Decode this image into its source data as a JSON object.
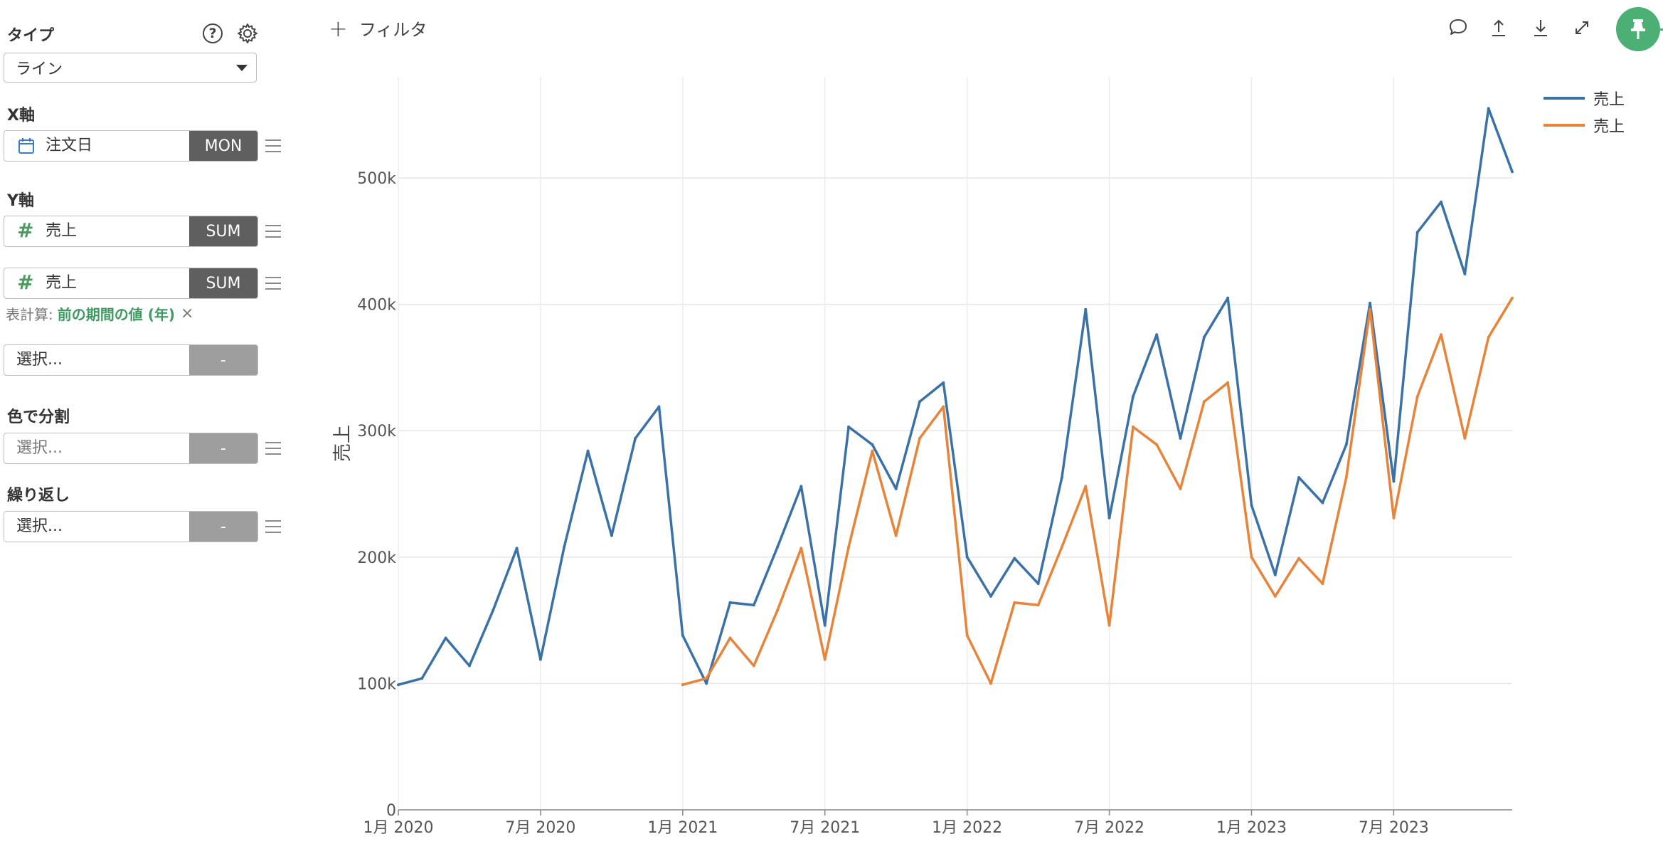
{
  "sidebar": {
    "type_label": "タイプ",
    "help_icon": "?",
    "chart_type": "ライン",
    "x_axis_label": "X軸",
    "x_field": {
      "icon": "calendar-icon",
      "name": "注文日",
      "agg": "MON"
    },
    "y_axis_label": "Y軸",
    "y_fields": [
      {
        "icon": "hash-icon",
        "glyph": "#",
        "name": "売上",
        "agg": "SUM"
      },
      {
        "icon": "hash-icon",
        "glyph": "#",
        "name": "売上",
        "agg": "SUM"
      }
    ],
    "table_calc": {
      "label": "表計算:",
      "value": "前の期間の値 (年)",
      "close": "×"
    },
    "extra_select": {
      "placeholder": "選択...",
      "agg": "-"
    },
    "color_split_label": "色で分割",
    "color_split": {
      "placeholder": "選択...",
      "agg": "-"
    },
    "repeat_label": "繰り返し",
    "repeat": {
      "placeholder": "選択...",
      "agg": "-"
    }
  },
  "toolbar": {
    "add_filter_plus": "+",
    "add_filter_label": "フィルタ",
    "icons": [
      "comment-icon",
      "upload-icon",
      "download-icon",
      "expand-icon",
      "pin-icon"
    ]
  },
  "colors": {
    "series1": "#3a72a8",
    "series2": "#e8843a",
    "accent": "#4caf73",
    "agg_bg": "#5f5f5f"
  },
  "chart_data": {
    "type": "line",
    "ylabel": "売上",
    "xlabel": "",
    "ylim": [
      0,
      580000
    ],
    "yticks": [
      0,
      100000,
      200000,
      300000,
      400000,
      500000
    ],
    "ytick_labels": [
      "0",
      "100k",
      "200k",
      "300k",
      "400k",
      "500k"
    ],
    "x_range": [
      "2020-01",
      "2023-12"
    ],
    "xticks": [
      "2020-01",
      "2020-07",
      "2021-01",
      "2021-07",
      "2022-01",
      "2022-07",
      "2023-01",
      "2023-07"
    ],
    "xtick_labels": [
      "1月 2020",
      "7月 2020",
      "1月 2021",
      "7月 2021",
      "1月 2022",
      "7月 2022",
      "1月 2023",
      "7月 2023"
    ],
    "grid": true,
    "legend": "top-right",
    "series": [
      {
        "name": "売上",
        "color": "#3a72a8",
        "x": [
          "2020-01",
          "2020-02",
          "2020-03",
          "2020-04",
          "2020-05",
          "2020-06",
          "2020-07",
          "2020-08",
          "2020-09",
          "2020-10",
          "2020-11",
          "2020-12",
          "2021-01",
          "2021-02",
          "2021-03",
          "2021-04",
          "2021-05",
          "2021-06",
          "2021-07",
          "2021-08",
          "2021-09",
          "2021-10",
          "2021-11",
          "2021-12",
          "2022-01",
          "2022-02",
          "2022-03",
          "2022-04",
          "2022-05",
          "2022-06",
          "2022-07",
          "2022-08",
          "2022-09",
          "2022-10",
          "2022-11",
          "2022-12",
          "2023-01",
          "2023-02",
          "2023-03",
          "2023-04",
          "2023-05",
          "2023-06",
          "2023-07",
          "2023-08",
          "2023-09",
          "2023-10",
          "2023-11",
          "2023-12"
        ],
        "values": [
          99000,
          104000,
          136000,
          114000,
          158000,
          207000,
          119000,
          208000,
          284000,
          217000,
          294000,
          319000,
          138000,
          100000,
          164000,
          162000,
          208000,
          256000,
          146000,
          303000,
          289000,
          254000,
          323000,
          338000,
          200000,
          169000,
          199000,
          179000,
          263000,
          396000,
          231000,
          327000,
          376000,
          294000,
          374000,
          405000,
          241000,
          186000,
          263000,
          243000,
          289000,
          401000,
          260000,
          457000,
          481000,
          424000,
          555000,
          505000
        ]
      },
      {
        "name": "売上",
        "color": "#e8843a",
        "x": [
          "2021-01",
          "2021-02",
          "2021-03",
          "2021-04",
          "2021-05",
          "2021-06",
          "2021-07",
          "2021-08",
          "2021-09",
          "2021-10",
          "2021-11",
          "2021-12",
          "2022-01",
          "2022-02",
          "2022-03",
          "2022-04",
          "2022-05",
          "2022-06",
          "2022-07",
          "2022-08",
          "2022-09",
          "2022-10",
          "2022-11",
          "2022-12",
          "2023-01",
          "2023-02",
          "2023-03",
          "2023-04",
          "2023-05",
          "2023-06",
          "2023-07",
          "2023-08",
          "2023-09",
          "2023-10",
          "2023-11",
          "2023-12"
        ],
        "values": [
          99000,
          104000,
          136000,
          114000,
          158000,
          207000,
          119000,
          208000,
          284000,
          217000,
          294000,
          319000,
          138000,
          100000,
          164000,
          162000,
          208000,
          256000,
          146000,
          303000,
          289000,
          254000,
          323000,
          338000,
          200000,
          169000,
          199000,
          179000,
          263000,
          396000,
          231000,
          327000,
          376000,
          294000,
          374000,
          405000
        ]
      }
    ]
  }
}
